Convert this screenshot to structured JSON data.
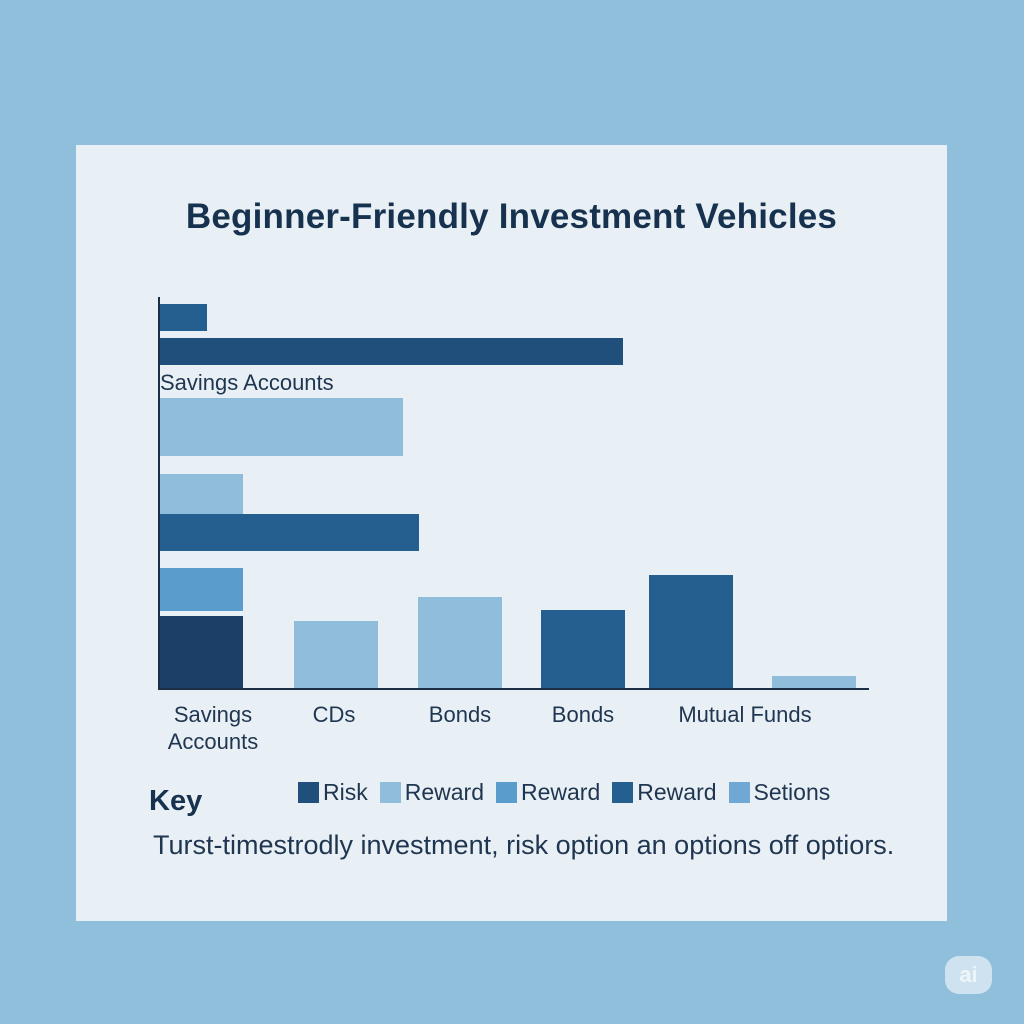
{
  "chart_data": {
    "type": "bar",
    "title": "Beginner-Friendly Investment Vehicles",
    "horizontal_bars": [
      {
        "value": 6,
        "color": "#255f8f"
      },
      {
        "value": 58,
        "color": "#1f4f7a"
      },
      {
        "value": 30.5,
        "color": "#90bdd9"
      },
      {
        "value": 10.5,
        "color": "#90bdd9"
      },
      {
        "value": 32.5,
        "color": "#255f8f"
      },
      {
        "value": 10.5,
        "color": "#5a9ccb"
      },
      {
        "value": 10.5,
        "color": "#1b3f66"
      }
    ],
    "inline_label": "Savings Accounts",
    "categories": [
      "Savings\nAccounts",
      "CDs",
      "Bonds",
      "Bonds",
      "Mutual Funds"
    ],
    "vertical_bars": [
      {
        "value": 68,
        "color": "#90bdd9"
      },
      {
        "value": 92,
        "color": "#90bdd9"
      },
      {
        "value": 79,
        "color": "#255f8f"
      },
      {
        "value": 114,
        "color": "#255f8f"
      },
      {
        "value": 13,
        "color": "#90bdd9"
      }
    ],
    "grid": false
  },
  "key": {
    "title": "Key",
    "items": [
      {
        "label": "Risk",
        "color": "#1f4f7a"
      },
      {
        "label": "Reward",
        "color": "#90bdd9"
      },
      {
        "label": "Reward",
        "color": "#5a9ccb"
      },
      {
        "label": "Reward",
        "color": "#255f8f"
      },
      {
        "label": "Setions",
        "color": "#6fa8d4"
      }
    ]
  },
  "note": "Turst-timestrodly investment, risk option an options off optiors.",
  "badge": "ai"
}
